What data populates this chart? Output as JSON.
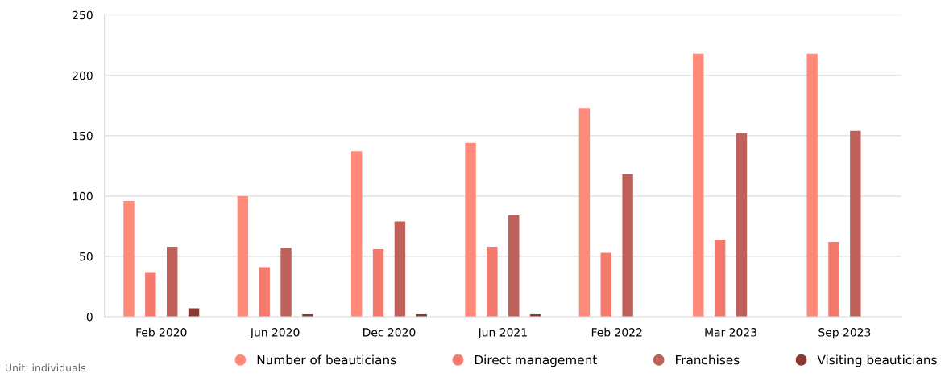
{
  "chart_data": {
    "type": "bar",
    "categories": [
      "Feb 2020",
      "Jun 2020",
      "Dec 2020",
      "Jun 2021",
      "Feb 2022",
      "Mar 2023",
      "Sep 2023"
    ],
    "series": [
      {
        "name": "Number of beauticians",
        "color": "#ff8a7a",
        "values": [
          96,
          100,
          137,
          144,
          173,
          218,
          218
        ]
      },
      {
        "name": "Direct management",
        "color": "#f47a6e",
        "values": [
          37,
          41,
          56,
          58,
          53,
          64,
          62
        ]
      },
      {
        "name": "Franchises",
        "color": "#c0605a",
        "values": [
          58,
          57,
          79,
          84,
          118,
          152,
          154
        ]
      },
      {
        "name": "Visiting beauticians",
        "color": "#8b3a32",
        "values": [
          7,
          2,
          2,
          2,
          null,
          null,
          null
        ]
      }
    ],
    "ylim": [
      0,
      250
    ],
    "yticks": [
      0,
      50,
      100,
      150,
      200,
      250
    ],
    "grid": "y",
    "legend": "bottom",
    "marker": "circle",
    "annotations": [
      "Unit: individuals"
    ]
  }
}
